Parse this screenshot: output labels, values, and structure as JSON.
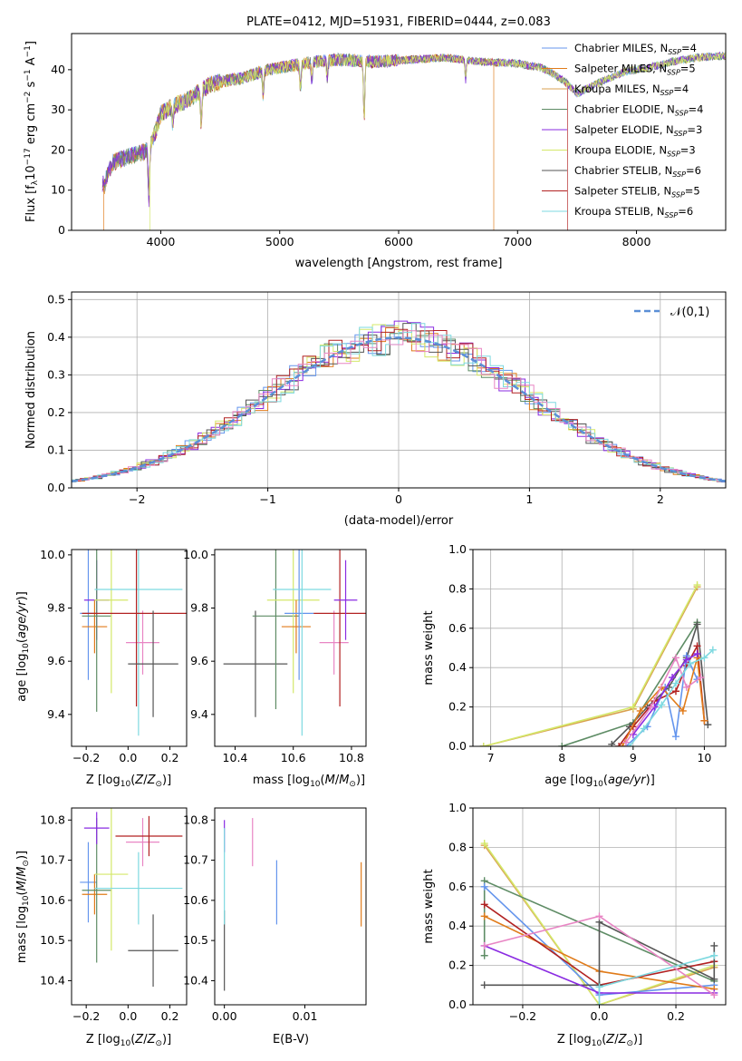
{
  "colors": {
    "cM": "#6495ed",
    "sM": "#e07b1a",
    "kM": "#d9a050",
    "cE": "#5e8c65",
    "sE": "#8a2be2",
    "kE": "#d4e86a",
    "cS": "#555555",
    "sS": "#b22222",
    "kS": "#7ed9e0",
    "pink": "#e885c4"
  },
  "chart_data": [
    {
      "id": "spectrum",
      "type": "line",
      "title": "PLATE=0412, MJD=51931, FIBERID=0444, z=0.083",
      "xlabel": "wavelength [Angstrom, rest frame]",
      "ylabel": "Flux [f_λ10^-17 erg cm^-2 s^-1 A^-1]",
      "xlim": [
        3250,
        8750
      ],
      "ylim": [
        0,
        49
      ],
      "xticks": [
        "4000",
        "5000",
        "6000",
        "7000",
        "8000"
      ],
      "yticks": [
        "0",
        "10",
        "20",
        "30",
        "40"
      ],
      "legend_position": "upper right",
      "legend": [
        {
          "label": "Chabrier MILES, N_SSP=4",
          "color_key": "cM"
        },
        {
          "label": "Salpeter MILES, N_SSP=5",
          "color_key": "sM"
        },
        {
          "label": "Kroupa MILES, N_SSP=4",
          "color_key": "kM"
        },
        {
          "label": "Chabrier ELODIE, N_SSP=4",
          "color_key": "cE"
        },
        {
          "label": "Salpeter ELODIE, N_SSP=3",
          "color_key": "sE"
        },
        {
          "label": "Kroupa ELODIE, N_SSP=3",
          "color_key": "kE"
        },
        {
          "label": "Chabrier STELIB, N_SSP=6",
          "color_key": "cS"
        },
        {
          "label": "Salpeter STELIB, N_SSP=5",
          "color_key": "sS"
        },
        {
          "label": "Kroupa STELIB, N_SSP=6",
          "color_key": "kS"
        }
      ],
      "continuum": {
        "x": [
          3520,
          3600,
          3700,
          3800,
          3900,
          3950,
          4000,
          4100,
          4200,
          4300,
          4400,
          4500,
          4700,
          4900,
          5100,
          5300,
          5500,
          5800,
          6100,
          6400,
          6700,
          7000,
          7200,
          7300,
          7400,
          7500,
          7700,
          7900,
          8100,
          8300,
          8500,
          8750
        ],
        "y": [
          12,
          17,
          18,
          19,
          20,
          24,
          29,
          31,
          32,
          34,
          36,
          37,
          38,
          40,
          41,
          42,
          42.5,
          42,
          42.5,
          43,
          42,
          41.5,
          40.5,
          39,
          37,
          34,
          37,
          39.5,
          40.5,
          42,
          43,
          43.5
        ]
      },
      "features": [
        {
          "x": 3530,
          "y": -2
        },
        {
          "x": 3900,
          "y": -12
        },
        {
          "x": 4100,
          "y": -5
        },
        {
          "x": 4340,
          "y": -9
        },
        {
          "x": 4861,
          "y": -6
        },
        {
          "x": 5175,
          "y": -6
        },
        {
          "x": 5270,
          "y": -5
        },
        {
          "x": 5400,
          "y": -4
        },
        {
          "x": 5710,
          "y": -14
        },
        {
          "x": 6563,
          "y": -5
        }
      ],
      "vertical_drops": [
        {
          "x": 3520,
          "series": "sM"
        },
        {
          "x": 3910,
          "series": "kE"
        },
        {
          "x": 6800,
          "series": "sM"
        },
        {
          "x": 7420,
          "series": "sS"
        }
      ]
    },
    {
      "id": "residual_hist",
      "type": "histogram",
      "xlabel": "(data-model)/error",
      "ylabel": "Normed distribution",
      "xlim": [
        -2.5,
        2.5
      ],
      "ylim": [
        0,
        0.52
      ],
      "grid": true,
      "xticks": [
        "−2",
        "−1",
        "0",
        "1",
        "2"
      ],
      "yticks": [
        "0.0",
        "0.1",
        "0.2",
        "0.3",
        "0.4",
        "0.5"
      ],
      "legend": [
        {
          "label": "𝒩(0,1)",
          "color_key": "cM"
        }
      ],
      "legend_position": "upper right",
      "bin_width": 0.1
    },
    {
      "id": "age_vs_Z",
      "type": "errorbar",
      "xlabel": "Z [log10(Z/Z⊙)]",
      "ylabel": "age  [log10(age/yr)]",
      "xlim": [
        -0.27,
        0.28
      ],
      "ylim": [
        9.28,
        10.02
      ],
      "xticks": [
        "−0.2",
        "0.0",
        "0.2"
      ],
      "yticks": [
        "9.4",
        "9.6",
        "9.8",
        "10.0"
      ],
      "points": [
        {
          "k": "cM",
          "x": -0.19,
          "xe": 0.04,
          "y": 9.78,
          "ye": 0.25
        },
        {
          "k": "sE",
          "x": -0.15,
          "xe": 0.06,
          "y": 9.83,
          "ye": 0.15
        },
        {
          "k": "sM",
          "x": -0.16,
          "xe": 0.06,
          "y": 9.73,
          "ye": 0.1
        },
        {
          "k": "cE",
          "x": -0.15,
          "xe": 0.07,
          "y": 9.77,
          "ye": 0.36
        },
        {
          "k": "kE",
          "x": -0.08,
          "xe": 0.08,
          "y": 9.83,
          "ye": 0.35
        },
        {
          "k": "kS",
          "x": 0.05,
          "xe": 0.21,
          "y": 9.87,
          "ye": 0.55
        },
        {
          "k": "pink",
          "x": 0.07,
          "xe": 0.08,
          "y": 9.67,
          "ye": 0.12
        },
        {
          "k": "sS",
          "x": 0.04,
          "xe": 0.26,
          "y": 9.78,
          "ye": 0.35
        },
        {
          "k": "cS",
          "x": 0.12,
          "xe": 0.12,
          "y": 9.59,
          "ye": 0.2
        }
      ]
    },
    {
      "id": "age_vs_mass",
      "type": "errorbar",
      "xlabel": "mass [log10(M/M⊙)]",
      "ylabel": "",
      "xlim": [
        10.33,
        10.85
      ],
      "ylim": [
        9.28,
        10.02
      ],
      "xticks": [
        "10.4",
        "10.6",
        "10.8"
      ],
      "yticks": [
        "9.4",
        "9.6",
        "9.8",
        "10.0"
      ],
      "points": [
        {
          "k": "cS",
          "x": 10.47,
          "xe": 0.11,
          "y": 9.59,
          "ye": 0.2
        },
        {
          "k": "cE",
          "x": 10.54,
          "xe": 0.08,
          "y": 9.77,
          "ye": 0.35
        },
        {
          "k": "kE",
          "x": 10.6,
          "xe": 0.09,
          "y": 9.83,
          "ye": 0.35
        },
        {
          "k": "sM",
          "x": 10.61,
          "xe": 0.05,
          "y": 9.73,
          "ye": 0.1
        },
        {
          "k": "cM",
          "x": 10.62,
          "xe": 0.05,
          "y": 9.78,
          "ye": 0.25
        },
        {
          "k": "kS",
          "x": 10.63,
          "xe": 0.1,
          "y": 9.87,
          "ye": 0.55
        },
        {
          "k": "pink",
          "x": 10.74,
          "xe": 0.05,
          "y": 9.67,
          "ye": 0.12
        },
        {
          "k": "sS",
          "x": 10.76,
          "xe": 0.09,
          "y": 9.78,
          "ye": 0.35
        },
        {
          "k": "sE",
          "x": 10.78,
          "xe": 0.04,
          "y": 9.83,
          "ye": 0.15
        }
      ]
    },
    {
      "id": "weight_vs_age",
      "type": "line",
      "xlabel": "age  [log10(age/yr)]",
      "ylabel": "mass weight",
      "xlim": [
        6.75,
        10.3
      ],
      "ylim": [
        0,
        1.0
      ],
      "grid": true,
      "xticks": [
        "7",
        "8",
        "9",
        "10"
      ],
      "yticks": [
        "0.0",
        "0.2",
        "0.4",
        "0.6",
        "0.8",
        "1.0"
      ],
      "series": [
        {
          "k": "kM",
          "x": [
            6.9,
            9.0,
            9.9
          ],
          "y": [
            0.0,
            0.19,
            0.81
          ]
        },
        {
          "k": "kE",
          "x": [
            6.9,
            9.0,
            9.9
          ],
          "y": [
            0.0,
            0.2,
            0.82
          ]
        },
        {
          "k": "cE",
          "x": [
            8.0,
            9.0,
            9.9
          ],
          "y": [
            0.0,
            0.12,
            0.63
          ]
        },
        {
          "k": "cS",
          "x": [
            8.7,
            8.95,
            9.2,
            9.5,
            9.75,
            9.9,
            10.05
          ],
          "y": [
            0.01,
            0.1,
            0.2,
            0.3,
            0.45,
            0.62,
            0.11
          ]
        },
        {
          "k": "sS",
          "x": [
            8.8,
            9.0,
            9.3,
            9.6,
            9.75,
            9.9,
            10.0
          ],
          "y": [
            0.0,
            0.1,
            0.23,
            0.28,
            0.41,
            0.51,
            0.13
          ]
        },
        {
          "k": "cM",
          "x": [
            8.9,
            9.2,
            9.45,
            9.6,
            9.75,
            9.9
          ],
          "y": [
            0.0,
            0.1,
            0.3,
            0.05,
            0.46,
            0.34
          ]
        },
        {
          "k": "sM",
          "x": [
            8.85,
            9.1,
            9.4,
            9.7,
            9.9,
            10.0
          ],
          "y": [
            0.0,
            0.18,
            0.3,
            0.18,
            0.45,
            0.13
          ]
        },
        {
          "k": "sE",
          "x": [
            9.0,
            9.3,
            9.55,
            9.75,
            9.9
          ],
          "y": [
            0.06,
            0.2,
            0.35,
            0.44,
            0.47
          ]
        },
        {
          "k": "pink",
          "x": [
            8.9,
            9.25,
            9.6,
            9.75,
            9.95
          ],
          "y": [
            0.02,
            0.2,
            0.45,
            0.3,
            0.35
          ]
        },
        {
          "k": "kS",
          "x": [
            8.95,
            9.15,
            9.4,
            9.6,
            9.8,
            10.0,
            10.12
          ],
          "y": [
            0.0,
            0.09,
            0.21,
            0.32,
            0.42,
            0.45,
            0.49
          ]
        }
      ]
    },
    {
      "id": "mass_vs_Z",
      "type": "errorbar",
      "xlabel": "Z [log10(Z/Z⊙)]",
      "ylabel": "mass [log10(M/M⊙)]",
      "xlim": [
        -0.27,
        0.28
      ],
      "ylim": [
        10.34,
        10.83
      ],
      "xticks": [
        "−0.2",
        "0.0",
        "0.2"
      ],
      "yticks": [
        "10.4",
        "10.5",
        "10.6",
        "10.7",
        "10.8"
      ],
      "points": [
        {
          "k": "cM",
          "x": -0.19,
          "xe": 0.04,
          "y": 10.645,
          "ye": 0.1
        },
        {
          "k": "sM",
          "x": -0.16,
          "xe": 0.06,
          "y": 10.615,
          "ye": 0.05
        },
        {
          "k": "cE",
          "x": -0.15,
          "xe": 0.07,
          "y": 10.625,
          "ye": 0.18
        },
        {
          "k": "kE",
          "x": -0.08,
          "xe": 0.08,
          "y": 10.665,
          "ye": 0.19
        },
        {
          "k": "sE",
          "x": -0.15,
          "xe": 0.06,
          "y": 10.78,
          "ye": 0.04
        },
        {
          "k": "pink",
          "x": 0.07,
          "xe": 0.08,
          "y": 10.745,
          "ye": 0.06
        },
        {
          "k": "sS",
          "x": 0.1,
          "xe": 0.16,
          "y": 10.76,
          "ye": 0.05
        },
        {
          "k": "kS",
          "x": 0.05,
          "xe": 0.21,
          "y": 10.63,
          "ye": 0.09
        },
        {
          "k": "cS",
          "x": 0.12,
          "xe": 0.12,
          "y": 10.475,
          "ye": 0.09
        }
      ]
    },
    {
      "id": "mass_vs_ebv",
      "type": "errorbar",
      "xlabel": "E(B-V)",
      "ylabel": "",
      "xlim": [
        -0.0012,
        0.0176
      ],
      "ylim": [
        10.34,
        10.83
      ],
      "xticks": [
        "0.00",
        "0.01"
      ],
      "yticks": [
        "10.4",
        "10.5",
        "10.6",
        "10.7",
        "10.8"
      ],
      "points": [
        {
          "k": "cS",
          "x": 0.0,
          "y": 10.475,
          "ye": 0.1
        },
        {
          "k": "sE",
          "x": 0.0,
          "y": 10.76,
          "ye": 0.04
        },
        {
          "k": "kS",
          "x": 0.0,
          "y": 10.66,
          "ye": 0.12
        },
        {
          "k": "pink",
          "x": 0.0035,
          "y": 10.745,
          "ye": 0.06
        },
        {
          "k": "cM",
          "x": 0.0065,
          "y": 10.62,
          "ye": 0.08
        },
        {
          "k": "sM",
          "x": 0.017,
          "y": 10.615,
          "ye": 0.08
        }
      ]
    },
    {
      "id": "weight_vs_Z",
      "type": "line",
      "xlabel": "Z [log10(Z/Z⊙)]",
      "ylabel": "mass weight",
      "xlim": [
        -0.33,
        0.33
      ],
      "ylim": [
        0,
        1.0
      ],
      "grid": true,
      "xticks": [
        "−0.2",
        "0.0",
        "0.2"
      ],
      "yticks": [
        "0.0",
        "0.2",
        "0.4",
        "0.6",
        "0.8",
        "1.0"
      ],
      "series": [
        {
          "k": "kM",
          "x": [
            -0.3,
            0.0,
            0.3
          ],
          "y": [
            0.81,
            0.0,
            0.19
          ]
        },
        {
          "k": "kE",
          "x": [
            -0.3,
            0.0,
            0.3
          ],
          "y": [
            0.82,
            0.0,
            0.2
          ]
        },
        {
          "k": "cE",
          "x": [
            -0.3,
            -0.3,
            0.3
          ],
          "y": [
            0.25,
            0.63,
            0.12
          ]
        },
        {
          "k": "cM",
          "x": [
            -0.3,
            0.0,
            0.3
          ],
          "y": [
            0.6,
            0.05,
            0.1
          ]
        },
        {
          "k": "sM",
          "x": [
            -0.3,
            0.0,
            0.3
          ],
          "y": [
            0.45,
            0.17,
            0.08
          ]
        },
        {
          "k": "sS",
          "x": [
            -0.3,
            0.0,
            0.3
          ],
          "y": [
            0.51,
            0.1,
            0.22
          ]
        },
        {
          "k": "cS",
          "x": [
            -0.3,
            0.0,
            0.0,
            0.3,
            0.3
          ],
          "y": [
            0.1,
            0.1,
            0.42,
            0.13,
            0.3
          ]
        },
        {
          "k": "sE",
          "x": [
            -0.3,
            0.0,
            0.3
          ],
          "y": [
            0.3,
            0.06,
            0.06
          ]
        },
        {
          "k": "pink",
          "x": [
            -0.3,
            0.0,
            0.3
          ],
          "y": [
            0.3,
            0.45,
            0.05
          ]
        },
        {
          "k": "kS",
          "x": [
            0.0,
            0.0,
            0.3
          ],
          "y": [
            0.0,
            0.09,
            0.25
          ]
        }
      ]
    }
  ]
}
